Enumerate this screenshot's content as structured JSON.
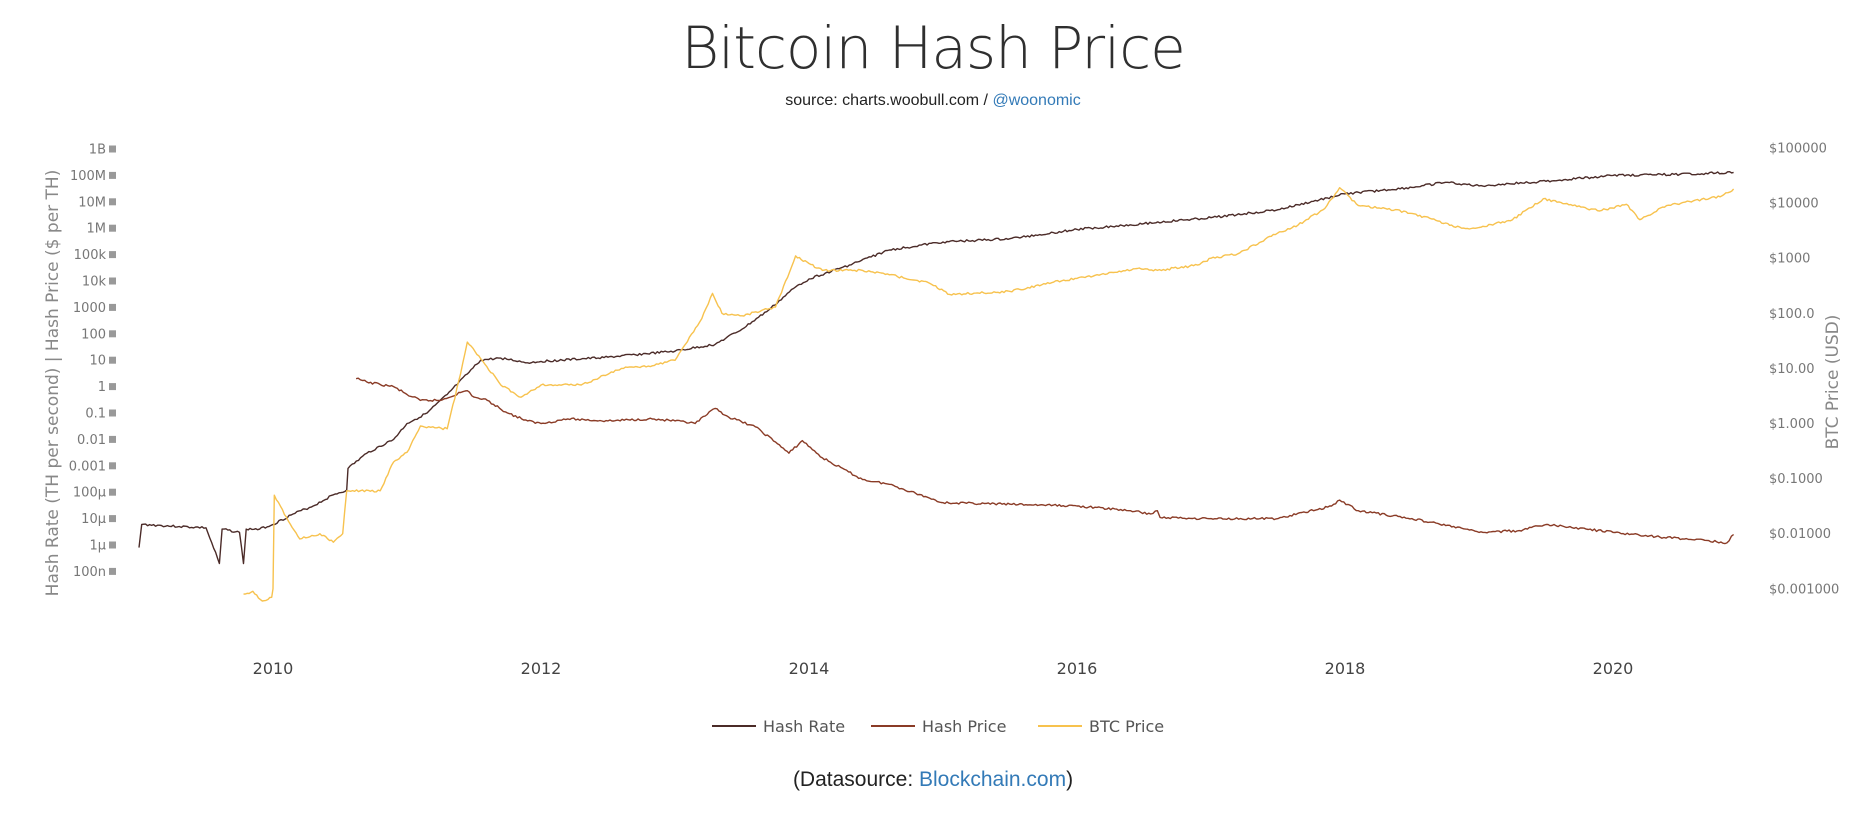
{
  "header": {
    "title": "Bitcoin Hash Price",
    "source_prefix": "source: charts.woobull.com / ",
    "source_link": "@woonomic"
  },
  "footer": {
    "prefix": "(Datasource: ",
    "link": "Blockchain.com",
    "suffix": ")"
  },
  "chart_data": {
    "type": "line",
    "title": "Bitcoin Hash Price",
    "y_left": {
      "label": "Hash Rate (TH per second)  |  Hash Price ($ per TH)",
      "scale": "log",
      "range": [
        1e-07,
        1000000000.0
      ],
      "tick_values": [
        1000000000.0,
        100000000.0,
        10000000.0,
        1000000.0,
        100000.0,
        10000.0,
        1000,
        100,
        10,
        1,
        0.1,
        0.01,
        0.001,
        0.0001,
        1e-05,
        1e-06,
        1e-07
      ],
      "tick_labels": [
        "1B",
        "100M",
        "10M",
        "1M",
        "100k",
        "10k",
        "1000",
        "100",
        "10",
        "1",
        "0.1",
        "0.01",
        "0.001",
        "100µ",
        "10µ",
        "1µ",
        "100n"
      ]
    },
    "y_right": {
      "label": "BTC Price (USD)",
      "scale": "log",
      "range": [
        0.001,
        100000
      ],
      "tick_values": [
        100000,
        10000,
        1000,
        100,
        10,
        1,
        0.1,
        0.01,
        0.001
      ],
      "tick_labels": [
        "$100000",
        "$10000",
        "$1000",
        "$100.0",
        "$10.00",
        "$1.000",
        "$0.1000",
        "$0.01000",
        "$0.001000"
      ]
    },
    "x": {
      "tick_values": [
        2010,
        2012,
        2014,
        2016,
        2018,
        2020
      ],
      "tick_labels": [
        "2010",
        "2012",
        "2014",
        "2016",
        "2018",
        "2020"
      ]
    },
    "grid": false,
    "legend_position": "bottom",
    "series": [
      {
        "name": "Hash Rate",
        "axis": "left",
        "color": "#4b2b28",
        "points": [
          [
            2009.0,
            8e-07
          ],
          [
            2009.02,
            6e-06
          ],
          [
            2009.3,
            5e-06
          ],
          [
            2009.5,
            4.5e-06
          ],
          [
            2009.6,
            2e-07
          ],
          [
            2009.62,
            4e-06
          ],
          [
            2009.75,
            3e-06
          ],
          [
            2009.78,
            2e-07
          ],
          [
            2009.8,
            4e-06
          ],
          [
            2009.9,
            4e-06
          ],
          [
            2010.0,
            6e-06
          ],
          [
            2010.15,
            1.5e-05
          ],
          [
            2010.3,
            3e-05
          ],
          [
            2010.45,
            8e-05
          ],
          [
            2010.55,
            0.00012
          ],
          [
            2010.56,
            0.0008
          ],
          [
            2010.7,
            0.003
          ],
          [
            2010.9,
            0.01
          ],
          [
            2011.0,
            0.04
          ],
          [
            2011.15,
            0.1
          ],
          [
            2011.3,
            0.5
          ],
          [
            2011.45,
            3
          ],
          [
            2011.55,
            10
          ],
          [
            2011.7,
            12
          ],
          [
            2011.9,
            8
          ],
          [
            2012.0,
            9
          ],
          [
            2012.5,
            13
          ],
          [
            2013.0,
            22
          ],
          [
            2013.3,
            40
          ],
          [
            2013.5,
            150
          ],
          [
            2013.7,
            800
          ],
          [
            2013.9,
            6000
          ],
          [
            2014.0,
            12000
          ],
          [
            2014.3,
            40000
          ],
          [
            2014.6,
            150000
          ],
          [
            2015.0,
            300000
          ],
          [
            2015.5,
            400000
          ],
          [
            2016.0,
            900000
          ],
          [
            2016.5,
            1500000.0
          ],
          [
            2017.0,
            2500000.0
          ],
          [
            2017.5,
            5000000.0
          ],
          [
            2018.0,
            20000000.0
          ],
          [
            2018.5,
            35000000.0
          ],
          [
            2018.75,
            55000000.0
          ],
          [
            2019.0,
            40000000.0
          ],
          [
            2019.5,
            60000000.0
          ],
          [
            2020.0,
            100000000.0
          ],
          [
            2020.5,
            110000000.0
          ],
          [
            2020.9,
            130000000.0
          ]
        ]
      },
      {
        "name": "Hash Price",
        "axis": "left",
        "color": "#8a3b26",
        "points": [
          [
            2010.62,
            2
          ],
          [
            2010.7,
            1.5
          ],
          [
            2010.8,
            1.2
          ],
          [
            2010.9,
            1.0
          ],
          [
            2011.0,
            0.5
          ],
          [
            2011.1,
            0.3
          ],
          [
            2011.25,
            0.3
          ],
          [
            2011.4,
            0.6
          ],
          [
            2011.45,
            0.7
          ],
          [
            2011.5,
            0.4
          ],
          [
            2011.6,
            0.3
          ],
          [
            2011.75,
            0.1
          ],
          [
            2011.9,
            0.05
          ],
          [
            2012.0,
            0.04
          ],
          [
            2012.2,
            0.06
          ],
          [
            2012.5,
            0.05
          ],
          [
            2012.8,
            0.06
          ],
          [
            2013.0,
            0.05
          ],
          [
            2013.15,
            0.04
          ],
          [
            2013.3,
            0.15
          ],
          [
            2013.4,
            0.07
          ],
          [
            2013.6,
            0.03
          ],
          [
            2013.75,
            0.008
          ],
          [
            2013.85,
            0.003
          ],
          [
            2013.95,
            0.009
          ],
          [
            2014.1,
            0.002
          ],
          [
            2014.4,
            0.0003
          ],
          [
            2014.6,
            0.0002
          ],
          [
            2014.9,
            6e-05
          ],
          [
            2015.0,
            4e-05
          ],
          [
            2015.5,
            3.5e-05
          ],
          [
            2016.0,
            3e-05
          ],
          [
            2016.4,
            2e-05
          ],
          [
            2016.55,
            1.5e-05
          ],
          [
            2016.6,
            2e-05
          ],
          [
            2016.62,
            1.1e-05
          ],
          [
            2017.0,
            1e-05
          ],
          [
            2017.5,
            1e-05
          ],
          [
            2017.9,
            3e-05
          ],
          [
            2017.96,
            5e-05
          ],
          [
            2018.1,
            2e-05
          ],
          [
            2018.5,
            1e-05
          ],
          [
            2018.9,
            4e-06
          ],
          [
            2019.0,
            3e-06
          ],
          [
            2019.3,
            3.5e-06
          ],
          [
            2019.5,
            6e-06
          ],
          [
            2019.8,
            4e-06
          ],
          [
            2020.0,
            3e-06
          ],
          [
            2020.35,
            2e-06
          ],
          [
            2020.7,
            1.5e-06
          ],
          [
            2020.85,
            1.2e-06
          ],
          [
            2020.9,
            2.5e-06
          ]
        ]
      },
      {
        "name": "BTC Price",
        "axis": "right",
        "color": "#f7c24e",
        "points": [
          [
            2009.78,
            0.0008
          ],
          [
            2009.85,
            0.0009
          ],
          [
            2009.92,
            0.0006
          ],
          [
            2009.99,
            0.0007
          ],
          [
            2010.0,
            0.001
          ],
          [
            2010.01,
            0.05
          ],
          [
            2010.1,
            0.02
          ],
          [
            2010.2,
            0.008
          ],
          [
            2010.35,
            0.01
          ],
          [
            2010.45,
            0.007
          ],
          [
            2010.52,
            0.01
          ],
          [
            2010.55,
            0.06
          ],
          [
            2010.8,
            0.06
          ],
          [
            2010.9,
            0.2
          ],
          [
            2011.0,
            0.3
          ],
          [
            2011.1,
            0.9
          ],
          [
            2011.3,
            0.8
          ],
          [
            2011.4,
            8
          ],
          [
            2011.45,
            30
          ],
          [
            2011.55,
            15
          ],
          [
            2011.7,
            5
          ],
          [
            2011.85,
            3
          ],
          [
            2012.0,
            5
          ],
          [
            2012.3,
            5
          ],
          [
            2012.6,
            10
          ],
          [
            2012.8,
            11
          ],
          [
            2013.0,
            14
          ],
          [
            2013.2,
            80
          ],
          [
            2013.28,
            230
          ],
          [
            2013.35,
            100
          ],
          [
            2013.5,
            90
          ],
          [
            2013.75,
            130
          ],
          [
            2013.9,
            1100
          ],
          [
            2014.0,
            800
          ],
          [
            2014.1,
            600
          ],
          [
            2014.4,
            600
          ],
          [
            2014.6,
            500
          ],
          [
            2014.9,
            350
          ],
          [
            2015.05,
            220
          ],
          [
            2015.5,
            250
          ],
          [
            2015.9,
            400
          ],
          [
            2016.0,
            430
          ],
          [
            2016.45,
            650
          ],
          [
            2016.6,
            600
          ],
          [
            2016.9,
            750
          ],
          [
            2017.0,
            1000
          ],
          [
            2017.2,
            1200
          ],
          [
            2017.45,
            2500
          ],
          [
            2017.65,
            4000
          ],
          [
            2017.85,
            8000
          ],
          [
            2017.96,
            19000
          ],
          [
            2018.1,
            9000
          ],
          [
            2018.3,
            8000
          ],
          [
            2018.5,
            6500
          ],
          [
            2018.87,
            3500
          ],
          [
            2019.0,
            3600
          ],
          [
            2019.25,
            5000
          ],
          [
            2019.48,
            12000
          ],
          [
            2019.7,
            9000
          ],
          [
            2019.9,
            7200
          ],
          [
            2020.1,
            9500
          ],
          [
            2020.2,
            5000
          ],
          [
            2020.4,
            9000
          ],
          [
            2020.6,
            11000
          ],
          [
            2020.8,
            13000
          ],
          [
            2020.9,
            18000
          ]
        ]
      }
    ]
  }
}
